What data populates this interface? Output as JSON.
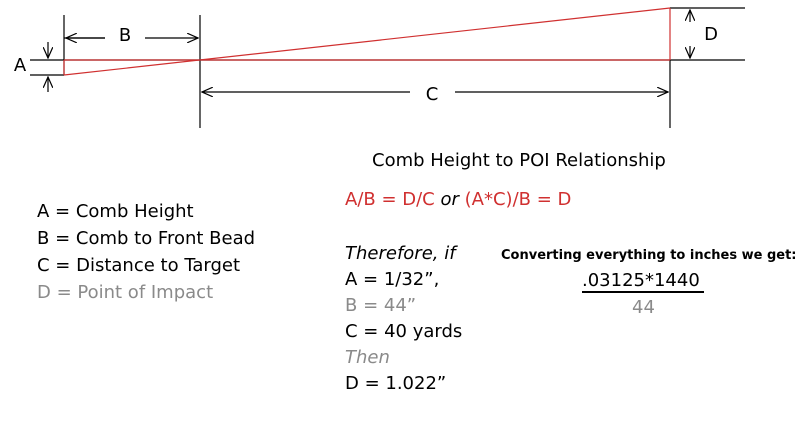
{
  "diagram": {
    "labels": {
      "a": "A",
      "b": "B",
      "c": "C",
      "d": "D"
    }
  },
  "title": "Comb Height to POI Relationship",
  "formula": {
    "left": "A/B = D/C",
    "middle": "or",
    "right": "(A*C)/B = D"
  },
  "legend": [
    "A = Comb Height",
    "B = Comb to Front Bead",
    "C = Distance to Target",
    "D = Point of Impact"
  ],
  "example": [
    "Therefore, if",
    "A = 1/32”,",
    "B = 44”",
    "C = 40 yards",
    "Then",
    "D = 1.022”"
  ],
  "conversion": {
    "heading": "Converting everything to inches we get:",
    "numerator": ".03125*1440",
    "denominator": "44"
  }
}
